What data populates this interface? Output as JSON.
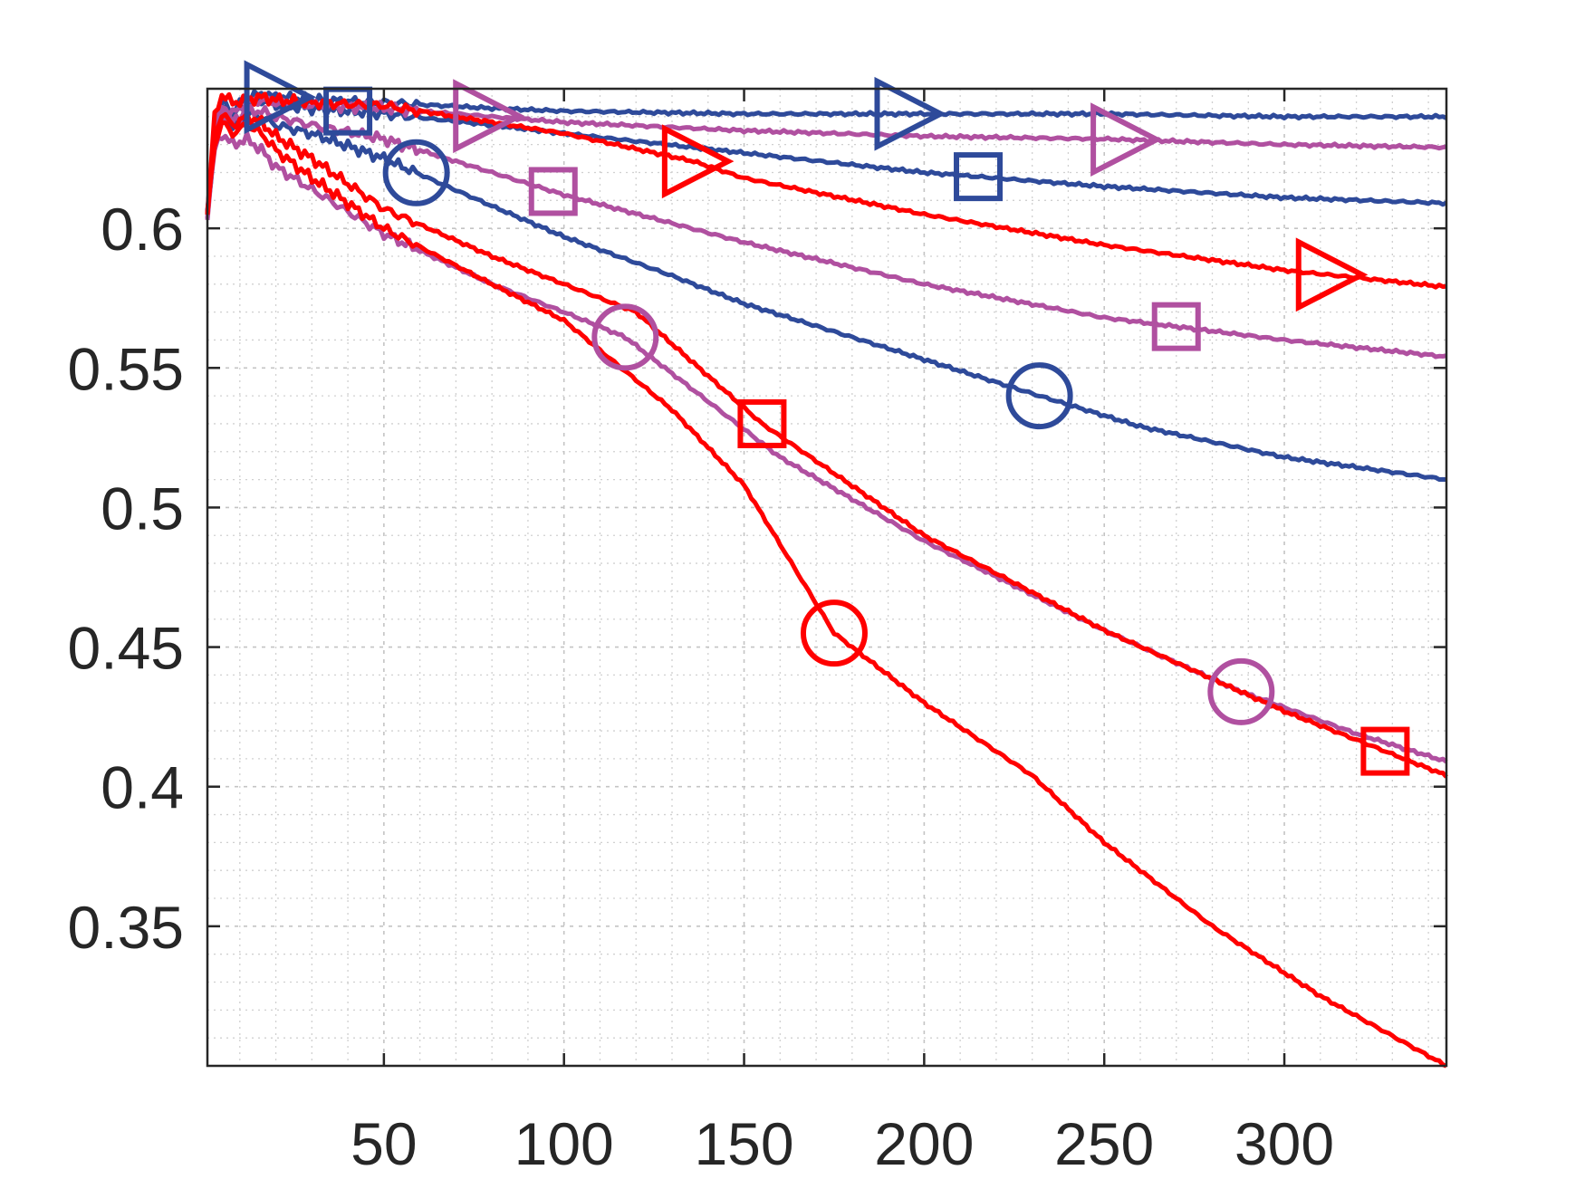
{
  "chart_data": {
    "type": "line",
    "title": "",
    "xlabel": "",
    "ylabel": "",
    "xlim": [
      1,
      345
    ],
    "ylim": [
      0.3,
      0.65
    ],
    "xticks": [
      50,
      100,
      150,
      200,
      250,
      300
    ],
    "yticks": [
      0.35,
      0.4,
      0.45,
      0.5,
      0.55,
      0.6
    ],
    "xtick_labels": [
      "50",
      "100",
      "150",
      "200",
      "250",
      "300"
    ],
    "ytick_labels": [
      "0.35",
      "0.4",
      "0.45",
      "0.5",
      "0.55",
      "0.6"
    ],
    "grid": true,
    "minor_grid": true,
    "legend": "none",
    "series": [
      {
        "color": "#2E4A9A",
        "marker": "triangle-right",
        "x": [
          1,
          3,
          5,
          8,
          12,
          16,
          20,
          30,
          50,
          80,
          100,
          150,
          200,
          250,
          300,
          345
        ],
        "y": [
          0.605,
          0.638,
          0.645,
          0.642,
          0.647,
          0.648,
          0.647,
          0.646,
          0.645,
          0.643,
          0.642,
          0.641,
          0.641,
          0.641,
          0.64,
          0.64
        ],
        "markers_x": [
          20,
          195
        ]
      },
      {
        "color": "#2E4A9A",
        "marker": "square",
        "x": [
          1,
          3,
          5,
          8,
          12,
          16,
          20,
          30,
          50,
          80,
          100,
          150,
          200,
          250,
          300,
          345
        ],
        "y": [
          0.605,
          0.636,
          0.643,
          0.64,
          0.645,
          0.646,
          0.644,
          0.643,
          0.641,
          0.637,
          0.634,
          0.627,
          0.62,
          0.615,
          0.611,
          0.609
        ],
        "markers_x": [
          40,
          215
        ]
      },
      {
        "color": "#2E4A9A",
        "marker": "circle",
        "x": [
          1,
          3,
          5,
          8,
          12,
          16,
          20,
          30,
          50,
          80,
          100,
          130,
          150,
          180,
          200,
          232,
          260,
          300,
          345
        ],
        "y": [
          0.605,
          0.632,
          0.64,
          0.636,
          0.641,
          0.64,
          0.637,
          0.634,
          0.625,
          0.608,
          0.597,
          0.583,
          0.573,
          0.561,
          0.553,
          0.54,
          0.529,
          0.518,
          0.51
        ],
        "markers_x": [
          59,
          232
        ]
      },
      {
        "color": "#B050A0",
        "marker": "triangle-right",
        "x": [
          1,
          3,
          5,
          8,
          12,
          16,
          20,
          30,
          50,
          80,
          100,
          150,
          200,
          250,
          300,
          345
        ],
        "y": [
          0.605,
          0.637,
          0.644,
          0.641,
          0.645,
          0.646,
          0.645,
          0.644,
          0.643,
          0.64,
          0.638,
          0.635,
          0.633,
          0.632,
          0.63,
          0.629
        ],
        "markers_x": [
          78,
          255
        ]
      },
      {
        "color": "#B050A0",
        "marker": "square",
        "x": [
          1,
          3,
          5,
          8,
          12,
          16,
          20,
          30,
          50,
          80,
          100,
          150,
          200,
          250,
          300,
          345
        ],
        "y": [
          0.605,
          0.634,
          0.642,
          0.638,
          0.642,
          0.642,
          0.64,
          0.637,
          0.632,
          0.62,
          0.612,
          0.595,
          0.58,
          0.568,
          0.56,
          0.554
        ],
        "markers_x": [
          97,
          270
        ]
      },
      {
        "color": "#B050A0",
        "marker": "circle",
        "x": [
          1,
          3,
          5,
          8,
          12,
          16,
          20,
          30,
          50,
          80,
          100,
          117,
          140,
          160,
          200,
          250,
          288,
          320,
          345
        ],
        "y": [
          0.605,
          0.628,
          0.634,
          0.63,
          0.632,
          0.628,
          0.622,
          0.614,
          0.598,
          0.58,
          0.57,
          0.561,
          0.538,
          0.518,
          0.488,
          0.456,
          0.434,
          0.419,
          0.409
        ],
        "markers_x": [
          117,
          288
        ]
      },
      {
        "color": "#FF0000",
        "marker": "triangle-right",
        "x": [
          1,
          3,
          5,
          8,
          12,
          16,
          20,
          30,
          50,
          80,
          100,
          136,
          150,
          200,
          250,
          300,
          345
        ],
        "y": [
          0.605,
          0.64,
          0.648,
          0.645,
          0.646,
          0.647,
          0.646,
          0.645,
          0.644,
          0.638,
          0.634,
          0.624,
          0.618,
          0.605,
          0.594,
          0.585,
          0.579
        ],
        "markers_x": [
          136,
          312
        ]
      },
      {
        "color": "#FF0000",
        "marker": "square",
        "x": [
          1,
          3,
          5,
          8,
          12,
          16,
          20,
          30,
          50,
          80,
          100,
          120,
          155,
          200,
          250,
          300,
          345
        ],
        "y": [
          0.605,
          0.633,
          0.641,
          0.637,
          0.64,
          0.638,
          0.633,
          0.625,
          0.607,
          0.59,
          0.58,
          0.57,
          0.53,
          0.49,
          0.456,
          0.427,
          0.404
        ],
        "markers_x": [
          155,
          328
        ]
      },
      {
        "color": "#FF0000",
        "marker": "circle",
        "x": [
          1,
          3,
          5,
          8,
          12,
          16,
          20,
          30,
          50,
          80,
          100,
          130,
          150,
          175,
          200,
          230,
          250,
          280,
          310,
          345
        ],
        "y": [
          0.605,
          0.63,
          0.638,
          0.634,
          0.637,
          0.634,
          0.628,
          0.618,
          0.6,
          0.58,
          0.567,
          0.535,
          0.508,
          0.455,
          0.43,
          0.404,
          0.38,
          0.35,
          0.325,
          0.3
        ],
        "markers_x": [
          175
        ]
      }
    ]
  }
}
